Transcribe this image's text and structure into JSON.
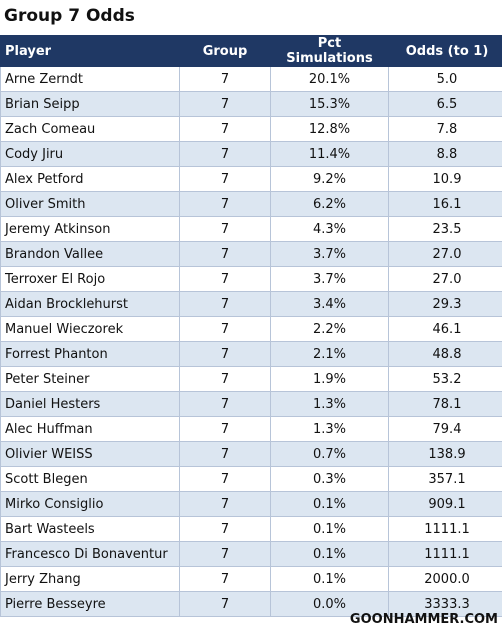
{
  "title": "Group 7 Odds",
  "table": {
    "header": [
      "Player",
      "Group",
      "Pct Simulations",
      "Odds (to 1)"
    ],
    "rows": [
      [
        "Arne Zerndt",
        "7",
        "20.1%",
        "5.0"
      ],
      [
        "Brian Seipp",
        "7",
        "15.3%",
        "6.5"
      ],
      [
        "Zach Comeau",
        "7",
        "12.8%",
        "7.8"
      ],
      [
        "Cody Jiru",
        "7",
        "11.4%",
        "8.8"
      ],
      [
        "Alex Petford",
        "7",
        "9.2%",
        "10.9"
      ],
      [
        "Oliver Smith",
        "7",
        "6.2%",
        "16.1"
      ],
      [
        "Jeremy Atkinson",
        "7",
        "4.3%",
        "23.5"
      ],
      [
        "Brandon Vallee",
        "7",
        "3.7%",
        "27.0"
      ],
      [
        "Terroxer El Rojo",
        "7",
        "3.7%",
        "27.0"
      ],
      [
        "Aidan Brocklehurst",
        "7",
        "3.4%",
        "29.3"
      ],
      [
        "Manuel Wieczorek",
        "7",
        "2.2%",
        "46.1"
      ],
      [
        "Forrest Phanton",
        "7",
        "2.1%",
        "48.8"
      ],
      [
        "Peter Steiner",
        "7",
        "1.9%",
        "53.2"
      ],
      [
        "Daniel Hesters",
        "7",
        "1.3%",
        "78.1"
      ],
      [
        "Alec Huffman",
        "7",
        "1.3%",
        "79.4"
      ],
      [
        "Olivier WEISS",
        "7",
        "0.7%",
        "138.9"
      ],
      [
        "Scott Blegen",
        "7",
        "0.3%",
        "357.1"
      ],
      [
        "Mirko Consiglio",
        "7",
        "0.1%",
        "909.1"
      ],
      [
        "Bart Wasteels",
        "7",
        "0.1%",
        "1111.1"
      ],
      [
        "Francesco Di Bonaventur",
        "7",
        "0.1%",
        "1111.1"
      ],
      [
        "Jerry Zhang",
        "7",
        "0.1%",
        "2000.0"
      ],
      [
        "Pierre Besseyre",
        "7",
        "0.0%",
        "3333.3"
      ]
    ]
  },
  "footer": "GOONHAMMER.COM"
}
